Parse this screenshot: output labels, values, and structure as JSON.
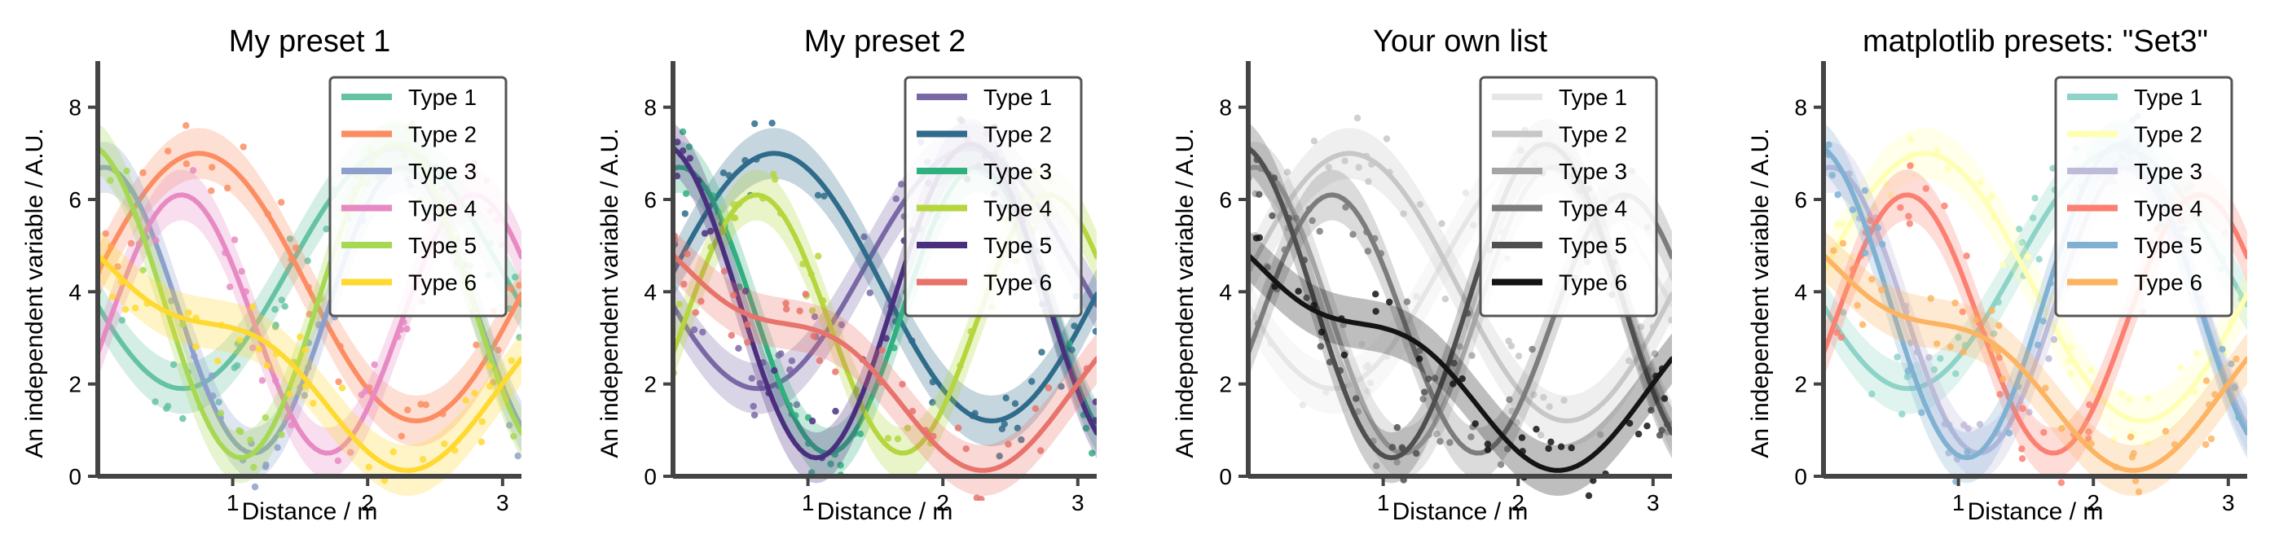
{
  "chart_data": [
    {
      "type": "line",
      "title": "My preset 1",
      "xlabel": "Distance / m",
      "ylabel": "An independent variable / A.U.",
      "xlim": [
        0,
        3.14
      ],
      "ylim": [
        0,
        9
      ],
      "xticks": [
        1,
        2,
        3
      ],
      "yticks": [
        0,
        2,
        4,
        6,
        8
      ],
      "grid": false,
      "legend_position": "upper right",
      "series": [
        {
          "name": "Type 1",
          "color": "#66c2a5"
        },
        {
          "name": "Type 2",
          "color": "#fc8d62"
        },
        {
          "name": "Type 3",
          "color": "#8da0cb"
        },
        {
          "name": "Type 4",
          "color": "#e78ac3"
        },
        {
          "name": "Type 5",
          "color": "#a6d854"
        },
        {
          "name": "Type 6",
          "color": "#ffd92f"
        }
      ]
    },
    {
      "type": "line",
      "title": "My preset 2",
      "xlabel": "Distance / m",
      "ylabel": "An independent variable / A.U.",
      "xlim": [
        0,
        3.14
      ],
      "ylim": [
        0,
        9
      ],
      "xticks": [
        1,
        2,
        3
      ],
      "yticks": [
        0,
        2,
        4,
        6,
        8
      ],
      "grid": false,
      "legend_position": "upper right",
      "series": [
        {
          "name": "Type 1",
          "color": "#7a68a6"
        },
        {
          "name": "Type 2",
          "color": "#2f6b8a"
        },
        {
          "name": "Type 3",
          "color": "#2fb07f"
        },
        {
          "name": "Type 4",
          "color": "#b5d63c"
        },
        {
          "name": "Type 5",
          "color": "#4b2f7f"
        },
        {
          "name": "Type 6",
          "color": "#e8736a"
        }
      ]
    },
    {
      "type": "line",
      "title": "Your own list",
      "xlabel": "Distance / m",
      "ylabel": "An independent variable / A.U.",
      "xlim": [
        0,
        3.14
      ],
      "ylim": [
        0,
        9
      ],
      "xticks": [
        1,
        2,
        3
      ],
      "yticks": [
        0,
        2,
        4,
        6,
        8
      ],
      "grid": false,
      "legend_position": "upper right",
      "series": [
        {
          "name": "Type 1",
          "color": "#e6e6e6"
        },
        {
          "name": "Type 2",
          "color": "#c7c7c7"
        },
        {
          "name": "Type 3",
          "color": "#a5a5a5"
        },
        {
          "name": "Type 4",
          "color": "#7c7c7c"
        },
        {
          "name": "Type 5",
          "color": "#4f4f4f"
        },
        {
          "name": "Type 6",
          "color": "#141414"
        }
      ]
    },
    {
      "type": "line",
      "title": "matplotlib presets: \"Set3\"",
      "xlabel": "Distance / m",
      "ylabel": "An independent variable / A.U.",
      "xlim": [
        0,
        3.14
      ],
      "ylim": [
        0,
        9
      ],
      "xticks": [
        1,
        2,
        3
      ],
      "yticks": [
        0,
        2,
        4,
        6,
        8
      ],
      "grid": false,
      "legend_position": "upper right",
      "series": [
        {
          "name": "Type 1",
          "color": "#8dd3c7"
        },
        {
          "name": "Type 2",
          "color": "#ffffb3"
        },
        {
          "name": "Type 3",
          "color": "#bebada"
        },
        {
          "name": "Type 4",
          "color": "#fb8072"
        },
        {
          "name": "Type 5",
          "color": "#80b1d3"
        },
        {
          "name": "Type 6",
          "color": "#fdb462"
        }
      ]
    }
  ]
}
